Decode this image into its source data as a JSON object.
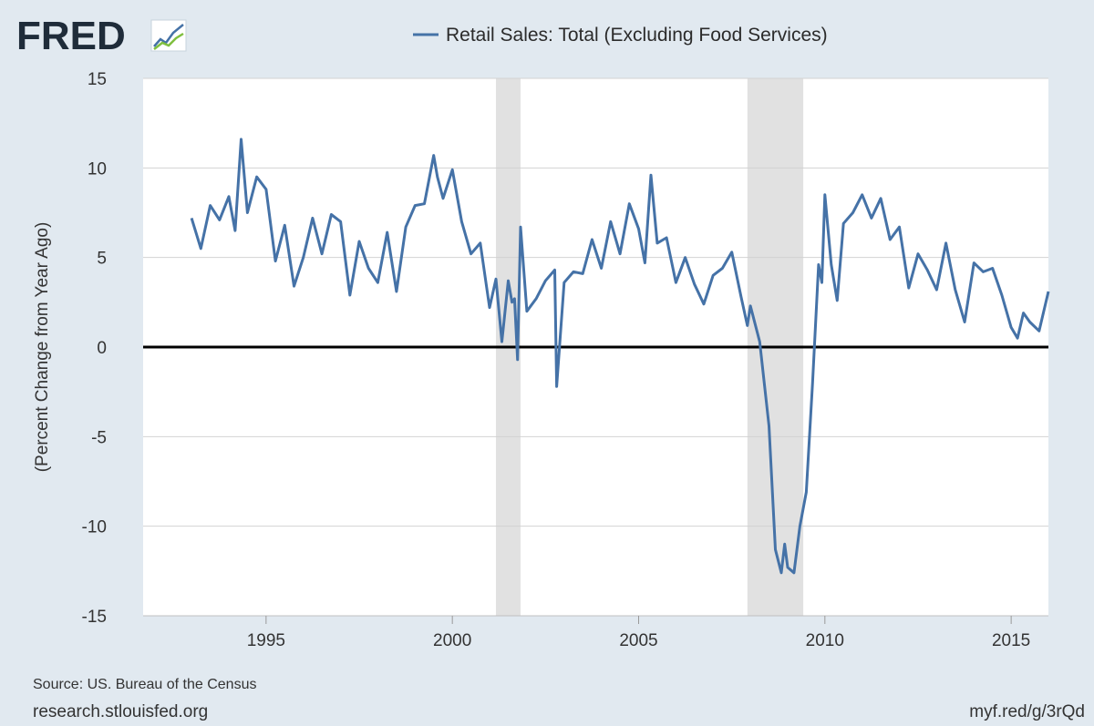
{
  "logo": {
    "text": "FRED"
  },
  "legend": {
    "label": "Retail Sales: Total (Excluding Food Services)",
    "color": "#4572a7"
  },
  "footer": {
    "source": "Source: US. Bureau of the Census",
    "site": "research.stlouisfed.org",
    "short_url": "myf.red/g/3rQd"
  },
  "chart_data": {
    "type": "line",
    "title": "",
    "xlabel": "",
    "ylabel": "(Percent Change from Year Ago)",
    "xlim": [
      1991.7,
      2016.0
    ],
    "ylim": [
      -15,
      15
    ],
    "x_ticks": [
      1995,
      2000,
      2005,
      2010,
      2015
    ],
    "y_ticks": [
      15,
      10,
      5,
      0,
      -5,
      -10,
      -15
    ],
    "grid": true,
    "zero_line": true,
    "legend_position": "top-center",
    "recessions": [
      {
        "start": 2001.17,
        "end": 2001.83
      },
      {
        "start": 2007.92,
        "end": 2009.42
      }
    ],
    "series": [
      {
        "name": "Retail Sales: Total (Excluding Food Services)",
        "color": "#4572a7",
        "x": [
          1993.0,
          1993.25,
          1993.5,
          1993.75,
          1994.0,
          1994.17,
          1994.33,
          1994.5,
          1994.75,
          1995.0,
          1995.25,
          1995.5,
          1995.75,
          1996.0,
          1996.25,
          1996.5,
          1996.75,
          1997.0,
          1997.25,
          1997.5,
          1997.75,
          1998.0,
          1998.25,
          1998.5,
          1998.75,
          1999.0,
          1999.25,
          1999.5,
          1999.6,
          1999.75,
          2000.0,
          2000.25,
          2000.5,
          2000.75,
          2001.0,
          2001.17,
          2001.33,
          2001.5,
          2001.6,
          2001.67,
          2001.75,
          2001.83,
          2002.0,
          2002.25,
          2002.5,
          2002.75,
          2002.8,
          2003.0,
          2003.25,
          2003.5,
          2003.75,
          2004.0,
          2004.25,
          2004.5,
          2004.75,
          2005.0,
          2005.17,
          2005.33,
          2005.5,
          2005.75,
          2006.0,
          2006.25,
          2006.5,
          2006.75,
          2007.0,
          2007.25,
          2007.5,
          2007.75,
          2007.92,
          2008.0,
          2008.25,
          2008.5,
          2008.67,
          2008.83,
          2008.92,
          2009.0,
          2009.17,
          2009.33,
          2009.5,
          2009.67,
          2009.83,
          2009.92,
          2010.0,
          2010.17,
          2010.33,
          2010.5,
          2010.75,
          2011.0,
          2011.25,
          2011.5,
          2011.75,
          2012.0,
          2012.25,
          2012.5,
          2012.75,
          2013.0,
          2013.25,
          2013.5,
          2013.75,
          2014.0,
          2014.25,
          2014.5,
          2014.75,
          2015.0,
          2015.17,
          2015.33,
          2015.5,
          2015.75,
          2016.0
        ],
        "values": [
          7.2,
          5.5,
          7.9,
          7.1,
          8.4,
          6.5,
          11.6,
          7.5,
          9.5,
          8.8,
          4.8,
          6.8,
          3.4,
          5.0,
          7.2,
          5.2,
          7.4,
          7.0,
          2.9,
          5.9,
          4.4,
          3.6,
          6.4,
          3.1,
          6.7,
          7.9,
          8.0,
          10.7,
          9.5,
          8.3,
          9.9,
          7.0,
          5.2,
          5.8,
          2.2,
          3.8,
          0.3,
          3.7,
          2.5,
          2.7,
          -0.7,
          6.7,
          2.0,
          2.7,
          3.7,
          4.3,
          -2.2,
          3.6,
          4.2,
          4.1,
          6.0,
          4.4,
          7.0,
          5.2,
          8.0,
          6.6,
          4.7,
          9.6,
          5.8,
          6.1,
          3.6,
          5.0,
          3.5,
          2.4,
          4.0,
          4.4,
          5.3,
          2.8,
          1.2,
          2.3,
          0.3,
          -4.4,
          -11.3,
          -12.6,
          -11.0,
          -12.3,
          -12.6,
          -10.0,
          -8.1,
          -2.0,
          4.6,
          3.6,
          8.5,
          4.6,
          2.6,
          6.9,
          7.5,
          8.5,
          7.2,
          8.3,
          6.0,
          6.7,
          3.3,
          5.2,
          4.3,
          3.2,
          5.8,
          3.2,
          1.4,
          4.7,
          4.2,
          4.4,
          2.9,
          1.1,
          0.5,
          1.9,
          1.4,
          0.9,
          3.1
        ]
      }
    ]
  }
}
